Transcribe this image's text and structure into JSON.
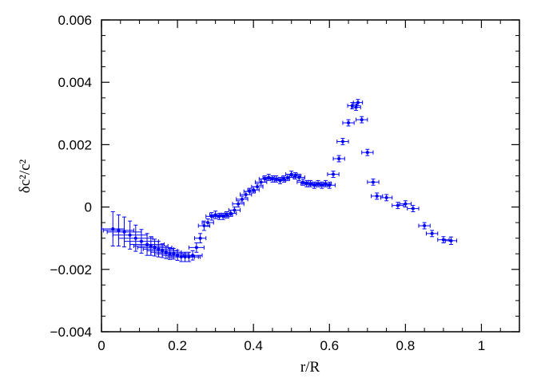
{
  "chart_data": {
    "type": "scatter",
    "xlabel": "r/R",
    "ylabel": "δc²/c²",
    "xlim": [
      0,
      1.1
    ],
    "ylim": [
      -0.004,
      0.006
    ],
    "xticks": [
      0,
      0.2,
      0.4,
      0.6,
      0.8,
      1
    ],
    "xtick_labels": [
      "0",
      "0.2",
      "0.4",
      "0.6",
      "0.8",
      "1"
    ],
    "yticks": [
      -0.004,
      -0.002,
      0,
      0.002,
      0.004,
      0.006
    ],
    "ytick_labels": [
      "−0.004",
      "−0.002",
      "0",
      "0.002",
      "0.004",
      "0.006"
    ],
    "grid": false,
    "colors": {
      "marker": "#0000ff",
      "axes": "#000000"
    },
    "series": [
      {
        "points": [
          {
            "x": 0.03,
            "y": -0.0007,
            "xerr": 0.03,
            "yerr": 0.00055
          },
          {
            "x": 0.045,
            "y": -0.00075,
            "xerr": 0.04,
            "yerr": 0.0005
          },
          {
            "x": 0.06,
            "y": -0.0008,
            "xerr": 0.045,
            "yerr": 0.00048
          },
          {
            "x": 0.075,
            "y": -0.0009,
            "xerr": 0.045,
            "yerr": 0.00045
          },
          {
            "x": 0.09,
            "y": -0.001,
            "xerr": 0.045,
            "yerr": 0.00042
          },
          {
            "x": 0.105,
            "y": -0.0011,
            "xerr": 0.045,
            "yerr": 0.00038
          },
          {
            "x": 0.12,
            "y": -0.0012,
            "xerr": 0.045,
            "yerr": 0.00035
          },
          {
            "x": 0.13,
            "y": -0.00125,
            "xerr": 0.045,
            "yerr": 0.0003
          },
          {
            "x": 0.14,
            "y": -0.0013,
            "xerr": 0.045,
            "yerr": 0.00027
          },
          {
            "x": 0.15,
            "y": -0.00135,
            "xerr": 0.04,
            "yerr": 0.00025
          },
          {
            "x": 0.16,
            "y": -0.0014,
            "xerr": 0.04,
            "yerr": 0.00022
          },
          {
            "x": 0.17,
            "y": -0.00145,
            "xerr": 0.04,
            "yerr": 0.0002
          },
          {
            "x": 0.18,
            "y": -0.0015,
            "xerr": 0.04,
            "yerr": 0.00018
          },
          {
            "x": 0.19,
            "y": -0.0015,
            "xerr": 0.04,
            "yerr": 0.00017
          },
          {
            "x": 0.2,
            "y": -0.00155,
            "xerr": 0.04,
            "yerr": 0.00016
          },
          {
            "x": 0.21,
            "y": -0.0016,
            "xerr": 0.035,
            "yerr": 0.00015
          },
          {
            "x": 0.22,
            "y": -0.0016,
            "xerr": 0.035,
            "yerr": 0.00015
          },
          {
            "x": 0.23,
            "y": -0.0016,
            "xerr": 0.03,
            "yerr": 0.00015
          },
          {
            "x": 0.24,
            "y": -0.00155,
            "xerr": 0.025,
            "yerr": 0.00015
          },
          {
            "x": 0.25,
            "y": -0.0013,
            "xerr": 0.02,
            "yerr": 0.00015
          },
          {
            "x": 0.26,
            "y": -0.001,
            "xerr": 0.015,
            "yerr": 0.00015
          },
          {
            "x": 0.27,
            "y": -0.0006,
            "xerr": 0.015,
            "yerr": 0.00015
          },
          {
            "x": 0.28,
            "y": -0.0005,
            "xerr": 0.015,
            "yerr": 0.00012
          },
          {
            "x": 0.29,
            "y": -0.0003,
            "xerr": 0.015,
            "yerr": 0.00012
          },
          {
            "x": 0.3,
            "y": -0.00025,
            "xerr": 0.015,
            "yerr": 0.00012
          },
          {
            "x": 0.31,
            "y": -0.0003,
            "xerr": 0.015,
            "yerr": 0.0001
          },
          {
            "x": 0.32,
            "y": -0.0003,
            "xerr": 0.015,
            "yerr": 0.0001
          },
          {
            "x": 0.33,
            "y": -0.00025,
            "xerr": 0.015,
            "yerr": 0.0001
          },
          {
            "x": 0.34,
            "y": -0.0002,
            "xerr": 0.015,
            "yerr": 0.0001
          },
          {
            "x": 0.35,
            "y": -0.0001,
            "xerr": 0.015,
            "yerr": 0.0001
          },
          {
            "x": 0.36,
            "y": 0.0001,
            "xerr": 0.015,
            "yerr": 0.0001
          },
          {
            "x": 0.37,
            "y": 0.00025,
            "xerr": 0.015,
            "yerr": 0.0001
          },
          {
            "x": 0.38,
            "y": 0.0004,
            "xerr": 0.015,
            "yerr": 0.0001
          },
          {
            "x": 0.39,
            "y": 0.0005,
            "xerr": 0.015,
            "yerr": 0.0001
          },
          {
            "x": 0.4,
            "y": 0.00055,
            "xerr": 0.015,
            "yerr": 0.0001
          },
          {
            "x": 0.41,
            "y": 0.00065,
            "xerr": 0.015,
            "yerr": 0.0001
          },
          {
            "x": 0.42,
            "y": 0.0008,
            "xerr": 0.015,
            "yerr": 0.0001
          },
          {
            "x": 0.43,
            "y": 0.0009,
            "xerr": 0.015,
            "yerr": 0.0001
          },
          {
            "x": 0.44,
            "y": 0.00095,
            "xerr": 0.015,
            "yerr": 0.0001
          },
          {
            "x": 0.45,
            "y": 0.0009,
            "xerr": 0.015,
            "yerr": 0.0001
          },
          {
            "x": 0.46,
            "y": 0.0009,
            "xerr": 0.015,
            "yerr": 0.0001
          },
          {
            "x": 0.47,
            "y": 0.00085,
            "xerr": 0.015,
            "yerr": 0.0001
          },
          {
            "x": 0.48,
            "y": 0.0009,
            "xerr": 0.015,
            "yerr": 0.0001
          },
          {
            "x": 0.49,
            "y": 0.00095,
            "xerr": 0.015,
            "yerr": 0.0001
          },
          {
            "x": 0.5,
            "y": 0.00105,
            "xerr": 0.015,
            "yerr": 0.0001
          },
          {
            "x": 0.51,
            "y": 0.001,
            "xerr": 0.015,
            "yerr": 0.0001
          },
          {
            "x": 0.52,
            "y": 0.00095,
            "xerr": 0.015,
            "yerr": 0.0001
          },
          {
            "x": 0.53,
            "y": 0.0008,
            "xerr": 0.015,
            "yerr": 0.0001
          },
          {
            "x": 0.54,
            "y": 0.00075,
            "xerr": 0.015,
            "yerr": 0.0001
          },
          {
            "x": 0.55,
            "y": 0.00075,
            "xerr": 0.015,
            "yerr": 0.0001
          },
          {
            "x": 0.56,
            "y": 0.0007,
            "xerr": 0.015,
            "yerr": 0.0001
          },
          {
            "x": 0.57,
            "y": 0.00075,
            "xerr": 0.015,
            "yerr": 0.0001
          },
          {
            "x": 0.58,
            "y": 0.0007,
            "xerr": 0.015,
            "yerr": 0.0001
          },
          {
            "x": 0.59,
            "y": 0.00075,
            "xerr": 0.015,
            "yerr": 0.0001
          },
          {
            "x": 0.6,
            "y": 0.0007,
            "xerr": 0.015,
            "yerr": 0.0001
          },
          {
            "x": 0.61,
            "y": 0.00105,
            "xerr": 0.015,
            "yerr": 0.0001
          },
          {
            "x": 0.625,
            "y": 0.00155,
            "xerr": 0.015,
            "yerr": 0.0001
          },
          {
            "x": 0.635,
            "y": 0.0021,
            "xerr": 0.015,
            "yerr": 0.0001
          },
          {
            "x": 0.65,
            "y": 0.0027,
            "xerr": 0.015,
            "yerr": 0.0001
          },
          {
            "x": 0.66,
            "y": 0.00325,
            "xerr": 0.012,
            "yerr": 0.0001
          },
          {
            "x": 0.67,
            "y": 0.0032,
            "xerr": 0.012,
            "yerr": 0.0001
          },
          {
            "x": 0.675,
            "y": 0.00335,
            "xerr": 0.012,
            "yerr": 0.0001
          },
          {
            "x": 0.685,
            "y": 0.0028,
            "xerr": 0.015,
            "yerr": 0.0001
          },
          {
            "x": 0.7,
            "y": 0.00175,
            "xerr": 0.015,
            "yerr": 0.0001
          },
          {
            "x": 0.715,
            "y": 0.0008,
            "xerr": 0.015,
            "yerr": 0.0001
          },
          {
            "x": 0.725,
            "y": 0.00035,
            "xerr": 0.015,
            "yerr": 0.0001
          },
          {
            "x": 0.75,
            "y": 0.0003,
            "xerr": 0.015,
            "yerr": 0.0001
          },
          {
            "x": 0.78,
            "y": 5e-05,
            "xerr": 0.015,
            "yerr": 0.0001
          },
          {
            "x": 0.8,
            "y": 0.0001,
            "xerr": 0.015,
            "yerr": 0.0001
          },
          {
            "x": 0.82,
            "y": -5e-05,
            "xerr": 0.015,
            "yerr": 0.0001
          },
          {
            "x": 0.85,
            "y": -0.0006,
            "xerr": 0.015,
            "yerr": 0.0001
          },
          {
            "x": 0.87,
            "y": -0.00085,
            "xerr": 0.015,
            "yerr": 0.0001
          },
          {
            "x": 0.9,
            "y": -0.00105,
            "xerr": 0.015,
            "yerr": 0.0001
          },
          {
            "x": 0.92,
            "y": -0.00108,
            "xerr": 0.015,
            "yerr": 0.00012
          }
        ]
      }
    ]
  }
}
